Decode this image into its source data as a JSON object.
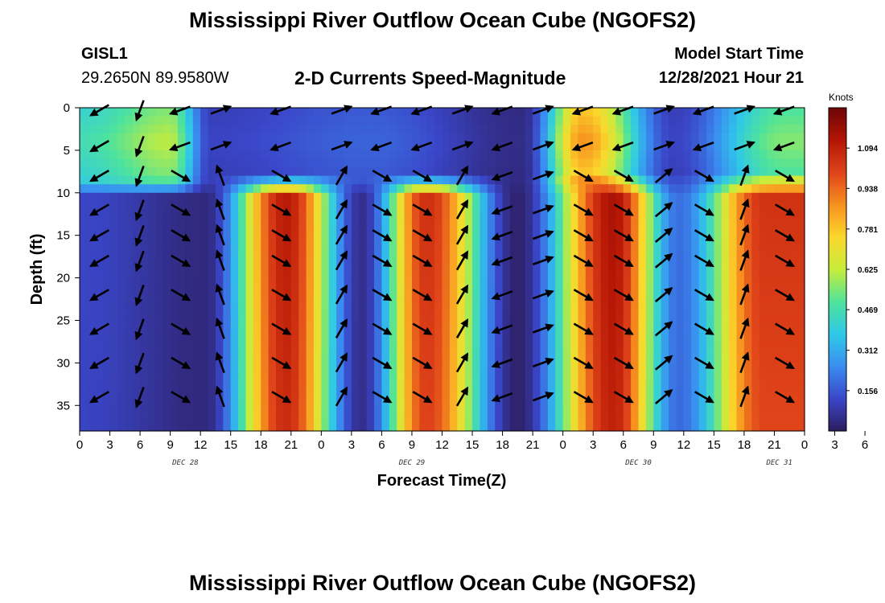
{
  "page": {
    "title": "Mississippi River Outflow Ocean Cube (NGOFS2)",
    "station_id": "GISL1",
    "coordinates": "29.2650N  89.9580W",
    "subtitle": "2-D Currents Speed-Magnitude",
    "model_start_label": "Model Start Time",
    "model_start_value": "12/28/2021 Hour 21",
    "second_title": "Mississippi River Outflow Ocean Cube (NGOFS2)"
  },
  "chart_data": {
    "type": "heatmap",
    "title": "2-D Currents Speed-Magnitude",
    "xlabel": "Forecast Time(Z)",
    "ylabel": "Depth (ft)",
    "xlim": [
      0,
      72
    ],
    "ylim": [
      38,
      0
    ],
    "x_tick_labels": [
      "0",
      "3",
      "6",
      "9",
      "12",
      "15",
      "18",
      "21",
      "0",
      "3",
      "6",
      "9",
      "12",
      "15",
      "18",
      "21",
      "0",
      "3",
      "6",
      "9",
      "12",
      "15",
      "18",
      "21",
      "0",
      "3",
      "6"
    ],
    "y_ticks": [
      0,
      5,
      10,
      15,
      20,
      25,
      30,
      35
    ],
    "date_labels": [
      {
        "text": "DEC 28",
        "x": 10.5
      },
      {
        "text": "DEC 29",
        "x": 33
      },
      {
        "text": "DEC 30",
        "x": 55.5
      },
      {
        "text": "DEC 31",
        "x": 69.5
      }
    ],
    "colorbar": {
      "label": "Knots",
      "min": 0.0,
      "max": 1.25,
      "ticks": [
        "1.094",
        "0.938",
        "0.781",
        "0.625",
        "0.469",
        "0.312",
        "0.156"
      ],
      "colors": [
        "#2c1c5c",
        "#3a46c8",
        "#3a8cf0",
        "#2fc8e8",
        "#4ee39c",
        "#c6ec3c",
        "#fbd82c",
        "#f7921f",
        "#e0441a",
        "#b51605",
        "#6e0606"
      ]
    },
    "surface_layer": {
      "depth_range_ft": [
        0,
        8
      ],
      "peaks": [
        {
          "time_h": 9,
          "speed": 0.62
        },
        {
          "time_h": 50,
          "speed": 0.88
        },
        {
          "time_h": 70,
          "speed": 0.56
        }
      ],
      "lows": [
        {
          "time_h": 13,
          "speed": 0.12
        },
        {
          "time_h": 29,
          "speed": 0.18
        },
        {
          "time_h": 44,
          "speed": 0.05
        },
        {
          "time_h": 59,
          "speed": 0.12
        }
      ]
    },
    "lower_layer": {
      "depth_range_ft": [
        8,
        38
      ],
      "peaks": [
        {
          "time_h": 20.5,
          "speed": 1.12
        },
        {
          "time_h": 34.5,
          "speed": 1.06
        },
        {
          "time_h": 53,
          "speed": 1.15
        },
        {
          "time_h": 68,
          "speed": 1.05
        }
      ],
      "lows": [
        {
          "time_h": 12.5,
          "speed": 0.04
        },
        {
          "time_h": 28,
          "speed": 0.06
        },
        {
          "time_h": 43.5,
          "speed": 0.02
        },
        {
          "time_h": 59.5,
          "speed": 0.2
        }
      ]
    },
    "vector_times_h": [
      2,
      6,
      10,
      14,
      20,
      26,
      30,
      34,
      38,
      42,
      46,
      50,
      54,
      58,
      62,
      66,
      70
    ],
    "vector_depths_ft": [
      0,
      4.5,
      8,
      12,
      15,
      18,
      22,
      26,
      30,
      34
    ],
    "vector_headings_deg": [
      210,
      250,
      330,
      110,
      330,
      60,
      330,
      330,
      60,
      200,
      20,
      330,
      330,
      40,
      330,
      70,
      330
    ]
  }
}
